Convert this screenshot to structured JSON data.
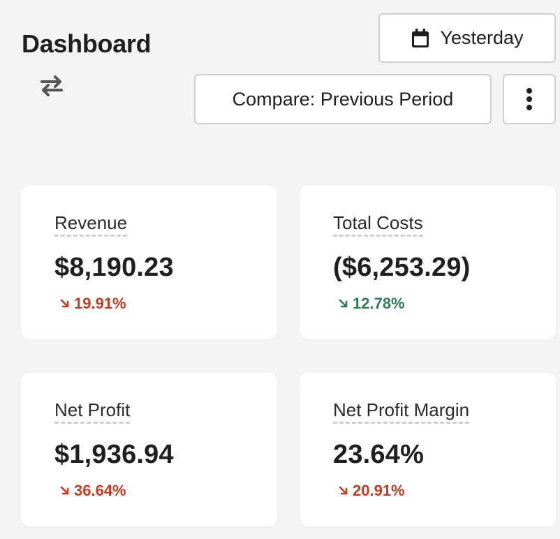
{
  "header": {
    "title": "Dashboard",
    "swap_icon": "swap-arrows-icon"
  },
  "controls": {
    "date_label": "Yesterday",
    "date_icon": "calendar-icon",
    "compare_label": "Compare: Previous Period",
    "more_icon": "more-vertical-icon"
  },
  "metrics": [
    {
      "label": "Revenue",
      "value": "$8,190.23",
      "change": "19.91%",
      "direction": "down",
      "color": "#c23b22"
    },
    {
      "label": "Total Costs",
      "value": "($6,253.29)",
      "change": "12.78%",
      "direction": "down",
      "color": "#2e7d5b"
    },
    {
      "label": "Net Profit",
      "value": "$1,936.94",
      "change": "36.64%",
      "direction": "down",
      "color": "#c23b22"
    },
    {
      "label": "Net Profit Margin",
      "value": "23.64%",
      "change": "20.91%",
      "direction": "down",
      "color": "#c23b22"
    }
  ]
}
